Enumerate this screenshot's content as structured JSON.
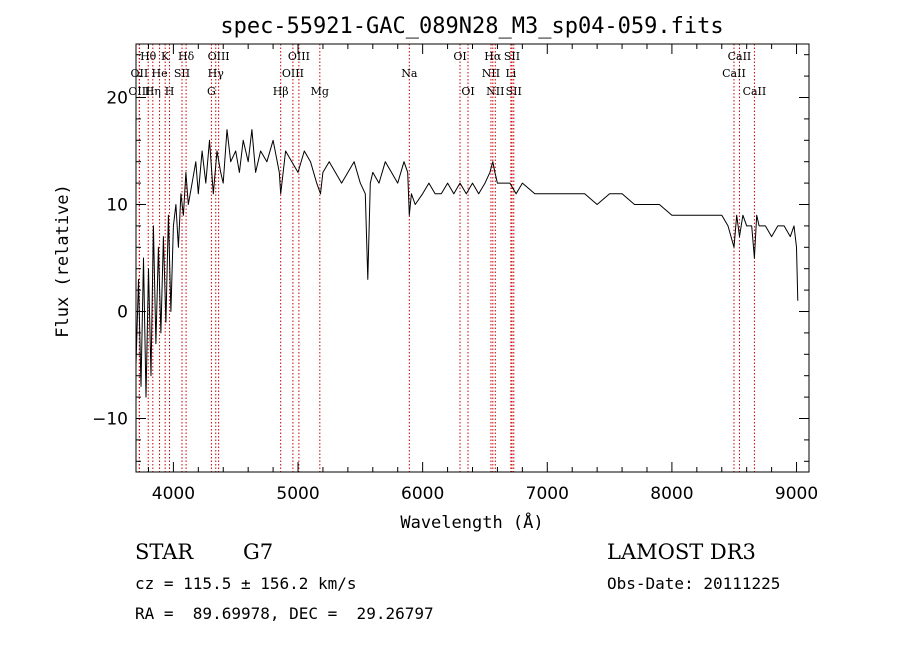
{
  "chart_data": {
    "type": "line",
    "title": "spec-55921-GAC_089N28_M3_sp04-059.fits",
    "xlabel": "Wavelength (Å)",
    "ylabel": "Flux (relative)",
    "xlim": [
      3700,
      9100
    ],
    "ylim": [
      -15,
      25
    ],
    "xticks": [
      4000,
      5000,
      6000,
      7000,
      8000,
      9000
    ],
    "yticks": [
      -10,
      0,
      10,
      20
    ],
    "series": [
      {
        "name": "flux",
        "x": [
          3700,
          3720,
          3740,
          3760,
          3780,
          3800,
          3820,
          3840,
          3860,
          3880,
          3900,
          3920,
          3940,
          3960,
          3980,
          4000,
          4020,
          4040,
          4060,
          4080,
          4100,
          4120,
          4150,
          4180,
          4200,
          4230,
          4260,
          4290,
          4320,
          4350,
          4380,
          4400,
          4430,
          4460,
          4500,
          4530,
          4560,
          4600,
          4630,
          4660,
          4700,
          4750,
          4800,
          4850,
          4861,
          4900,
          4950,
          5000,
          5050,
          5100,
          5150,
          5180,
          5200,
          5250,
          5300,
          5350,
          5400,
          5450,
          5500,
          5540,
          5560,
          5580,
          5600,
          5650,
          5700,
          5750,
          5800,
          5850,
          5880,
          5893,
          5910,
          5940,
          6000,
          6050,
          6100,
          6150,
          6200,
          6250,
          6300,
          6350,
          6400,
          6450,
          6500,
          6540,
          6563,
          6580,
          6600,
          6650,
          6700,
          6750,
          6800,
          6900,
          7000,
          7100,
          7200,
          7300,
          7400,
          7500,
          7600,
          7700,
          7800,
          7900,
          8000,
          8100,
          8200,
          8300,
          8400,
          8450,
          8498,
          8520,
          8542,
          8570,
          8600,
          8640,
          8662,
          8680,
          8700,
          8750,
          8800,
          8850,
          8900,
          8950,
          8980,
          9000,
          9010
        ],
        "y": [
          -5,
          3,
          -7,
          5,
          -8,
          4,
          -6,
          8,
          -3,
          6,
          -2,
          7,
          -1,
          9,
          0,
          8,
          10,
          6,
          11,
          9,
          13,
          10,
          12,
          14,
          11,
          15,
          12,
          16,
          11,
          15,
          13,
          12,
          17,
          14,
          15,
          13,
          16,
          14,
          17,
          13,
          15,
          14,
          16,
          13,
          11,
          15,
          14,
          13,
          15,
          14,
          12,
          11,
          13,
          14,
          13,
          12,
          13,
          14,
          12,
          11,
          3,
          12,
          13,
          12,
          14,
          13,
          12,
          14,
          13,
          9,
          11,
          10,
          11,
          12,
          11,
          11,
          12,
          11,
          12,
          11,
          12,
          11,
          12,
          13,
          14,
          13,
          12,
          12,
          12,
          11,
          12,
          11,
          11,
          11,
          11,
          11,
          10,
          11,
          11,
          10,
          10,
          10,
          9,
          9,
          9,
          9,
          9,
          8,
          6,
          9,
          7,
          9,
          8,
          8,
          5,
          9,
          8,
          8,
          7,
          8,
          8,
          7,
          8,
          6,
          1
        ]
      }
    ],
    "line_labels": [
      {
        "label": "Hθ",
        "x": 3798,
        "row": 0
      },
      {
        "label": "OII",
        "x": 3727,
        "row": 1
      },
      {
        "label": "OIII",
        "x": 3727,
        "row": 2
      },
      {
        "label": "K",
        "x": 3934,
        "row": 0
      },
      {
        "label": "He",
        "x": 3889,
        "row": 1
      },
      {
        "label": "Hη",
        "x": 3835,
        "row": 2
      },
      {
        "label": "Hδ",
        "x": 4102,
        "row": 0
      },
      {
        "label": "SII",
        "x": 4069,
        "row": 1
      },
      {
        "label": "H",
        "x": 3969,
        "row": 2
      },
      {
        "label": "OIII",
        "x": 4363,
        "row": 0
      },
      {
        "label": "Hγ",
        "x": 4340,
        "row": 1
      },
      {
        "label": "G",
        "x": 4305,
        "row": 2
      },
      {
        "label": "OIII",
        "x": 5007,
        "row": 0
      },
      {
        "label": "OIII",
        "x": 4959,
        "row": 1
      },
      {
        "label": "Hβ",
        "x": 4861,
        "row": 2
      },
      {
        "label": "Mg",
        "x": 5175,
        "row": 2
      },
      {
        "label": "Na",
        "x": 5893,
        "row": 1
      },
      {
        "label": "OI",
        "x": 6300,
        "row": 0
      },
      {
        "label": "OI",
        "x": 6364,
        "row": 2
      },
      {
        "label": "Hα",
        "x": 6563,
        "row": 0
      },
      {
        "label": "NII",
        "x": 6548,
        "row": 1
      },
      {
        "label": "NII",
        "x": 6583,
        "row": 2
      },
      {
        "label": "SII",
        "x": 6717,
        "row": 0
      },
      {
        "label": "Li",
        "x": 6708,
        "row": 1
      },
      {
        "label": "SII",
        "x": 6731,
        "row": 2
      },
      {
        "label": "CaII",
        "x": 8542,
        "row": 0
      },
      {
        "label": "CaII",
        "x": 8498,
        "row": 1
      },
      {
        "label": "CaII",
        "x": 8662,
        "row": 2
      }
    ],
    "line_color": "#cc0000"
  },
  "info": {
    "class": "STAR",
    "subclass": "G7",
    "survey": "LAMOST DR3",
    "cz": "cz = 115.5 ± 156.2 km/s",
    "obs_date": "Obs-Date: 20111225",
    "coords": "RA =  89.69978, DEC =  29.26797"
  }
}
